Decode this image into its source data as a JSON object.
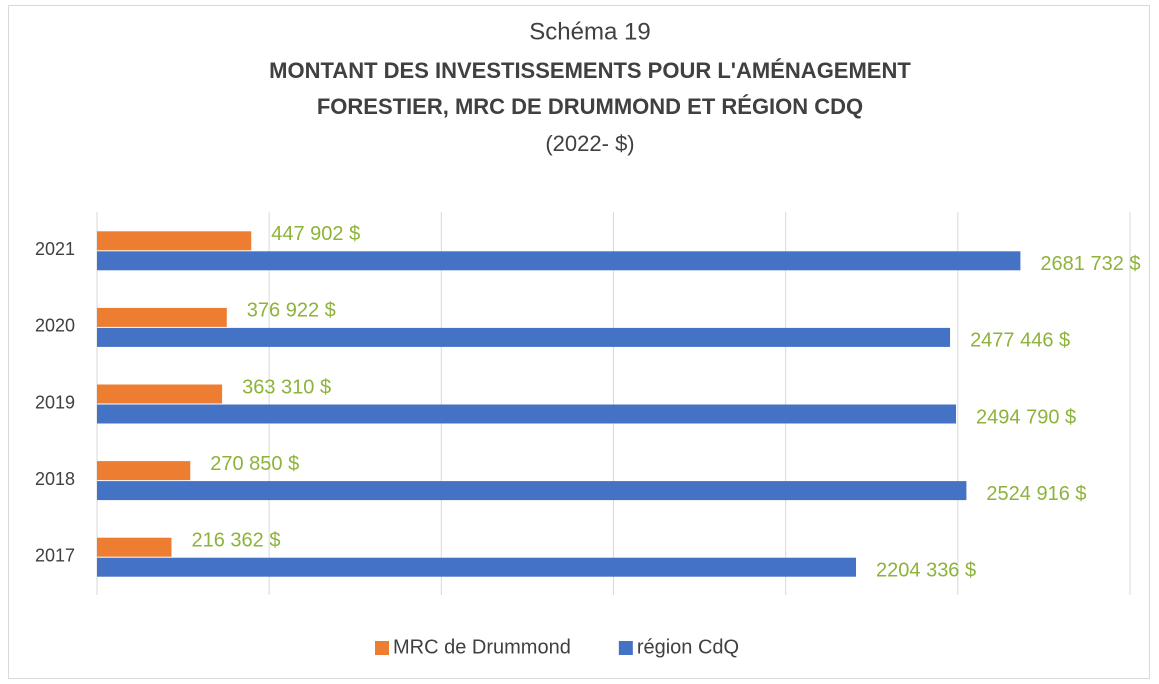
{
  "chart_data": {
    "type": "hbar",
    "overline": "Schéma 19",
    "title": [
      "MONTANT DES INVESTISSEMENTS POUR L'AMÉNAGEMENT",
      "FORESTIER, MRC DE DRUMMOND ET RÉGION CDQ"
    ],
    "subtitle": "(2022- $)",
    "categories": [
      "2017",
      "2018",
      "2019",
      "2020",
      "2021"
    ],
    "series": [
      {
        "name": "MRC de Drummond",
        "color": "#ed7d31",
        "values": [
          216362,
          270850,
          363310,
          376922,
          447902
        ],
        "value_labels": [
          "216 362  $",
          "270 850  $",
          "363 310  $",
          "376 922  $",
          "447 902  $"
        ]
      },
      {
        "name": "région CdQ",
        "color": "#4472c4",
        "values": [
          2204336,
          2524916,
          2494790,
          2477446,
          2681732
        ],
        "value_labels": [
          "2204 336  $",
          "2524 916  $",
          "2494 790  $",
          "2477 446  $",
          "2681 732  $"
        ]
      }
    ],
    "xlim": [
      0,
      3000000
    ],
    "xticks": [
      0,
      500000,
      1000000,
      1500000,
      2000000,
      2500000,
      3000000
    ],
    "grid": true,
    "label_color": "#8db33b",
    "legend": "bottom"
  }
}
